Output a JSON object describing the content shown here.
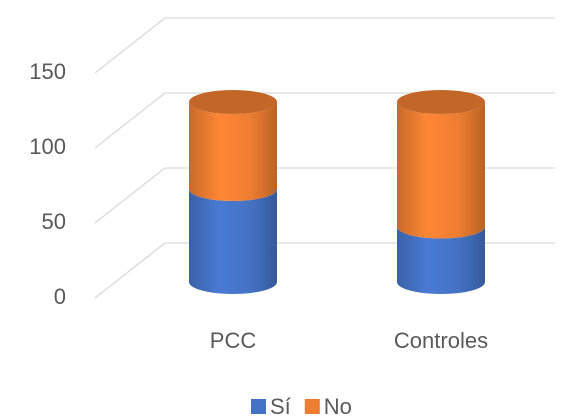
{
  "chart_data": {
    "type": "bar",
    "stacked": true,
    "style": "3d-cylinder",
    "categories": [
      "PCC",
      "Controles"
    ],
    "series": [
      {
        "name": "Sí",
        "color": "#4472c4",
        "values": [
          62,
          37
        ]
      },
      {
        "name": "No",
        "color": "#ed7d31",
        "values": [
          58,
          83
        ]
      }
    ],
    "ylim": [
      0,
      150
    ],
    "yticks": [
      0,
      50,
      100,
      150
    ],
    "grid": true,
    "legend": "bottom"
  }
}
